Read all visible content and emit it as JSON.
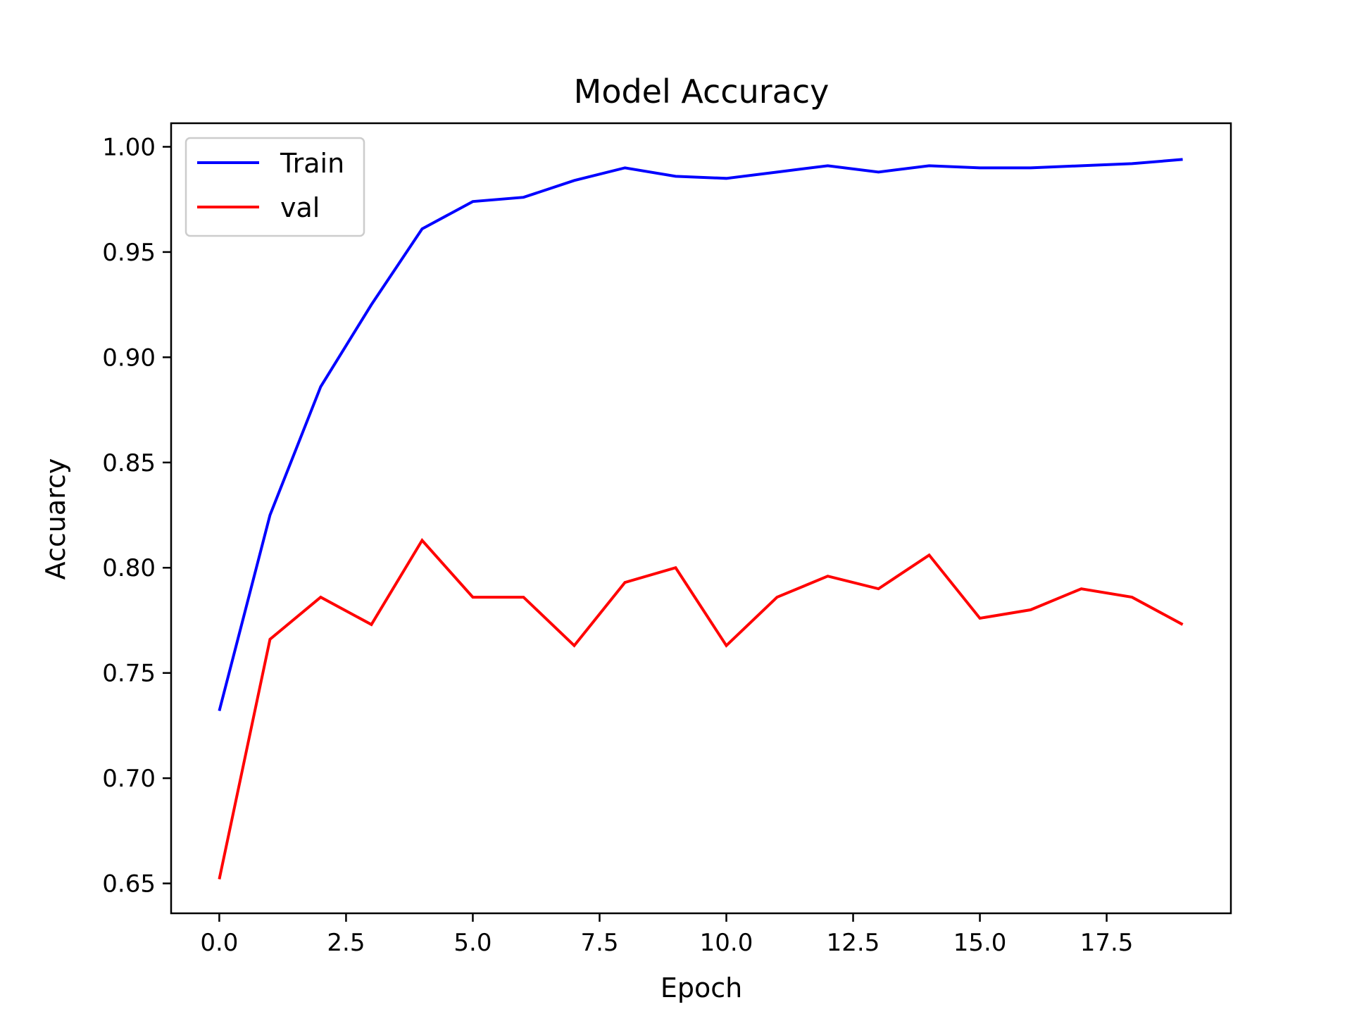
{
  "chart_data": {
    "type": "line",
    "title": "Model Accuracy",
    "xlabel": "Epoch",
    "ylabel": "Accuarcy",
    "x": [
      0,
      1,
      2,
      3,
      4,
      5,
      6,
      7,
      8,
      9,
      10,
      11,
      12,
      13,
      14,
      15,
      16,
      17,
      18,
      19
    ],
    "series": [
      {
        "name": "Train",
        "color": "#0000ff",
        "values": [
          0.732,
          0.825,
          0.886,
          0.925,
          0.961,
          0.974,
          0.976,
          0.984,
          0.99,
          0.986,
          0.985,
          0.988,
          0.991,
          0.988,
          0.991,
          0.99,
          0.99,
          0.991,
          0.992,
          0.994
        ]
      },
      {
        "name": "val",
        "color": "#ff0000",
        "values": [
          0.652,
          0.766,
          0.786,
          0.773,
          0.813,
          0.786,
          0.786,
          0.763,
          0.793,
          0.8,
          0.763,
          0.786,
          0.796,
          0.79,
          0.806,
          0.776,
          0.78,
          0.79,
          0.786,
          0.773
        ]
      }
    ],
    "xlim": [
      -0.95,
      19.95
    ],
    "ylim": [
      0.6358,
      1.0112
    ],
    "xticks": [
      0.0,
      2.5,
      5.0,
      7.5,
      10.0,
      12.5,
      15.0,
      17.5
    ],
    "xtick_labels": [
      "0.0",
      "2.5",
      "5.0",
      "7.5",
      "10.0",
      "12.5",
      "15.0",
      "17.5"
    ],
    "yticks": [
      0.65,
      0.7,
      0.75,
      0.8,
      0.85,
      0.9,
      0.95,
      1.0
    ],
    "ytick_labels": [
      "0.65",
      "0.70",
      "0.75",
      "0.80",
      "0.85",
      "0.90",
      "0.95",
      "1.00"
    ],
    "grid": false,
    "legend": "upper left"
  }
}
